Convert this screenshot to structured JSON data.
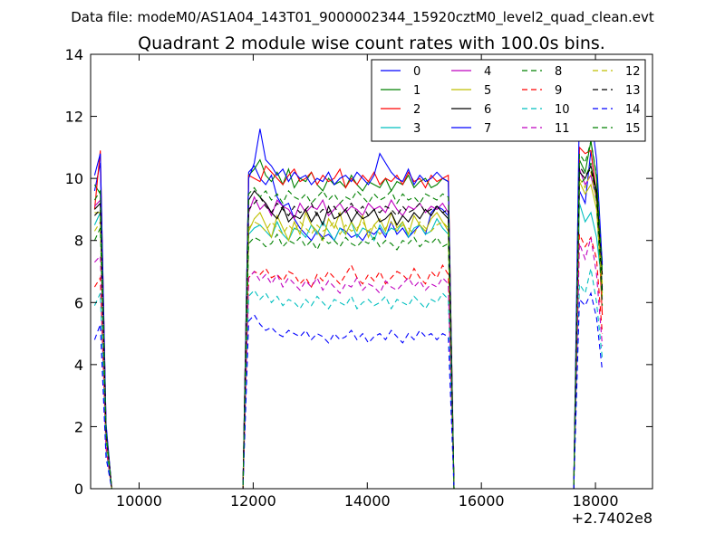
{
  "header": {
    "data_file": "Data file: modeM0/AS1A04_143T01_9000002344_15920cztM0_level2_quad_clean.evt",
    "title": "Quadrant 2 module wise count rates with 100.0s bins."
  },
  "chart_data": {
    "type": "line",
    "title": "Quadrant 2 module wise count rates with 100.0s bins.",
    "xlabel": "",
    "ylabel": "",
    "x_offset_label": "+2.7402e8",
    "xlim": [
      9150,
      19000
    ],
    "ylim": [
      0,
      14
    ],
    "xticks": [
      10000,
      12000,
      14000,
      16000,
      18000
    ],
    "xtick_labels": [
      "10000",
      "12000",
      "14000",
      "16000",
      "18000"
    ],
    "yticks": [
      0,
      2,
      4,
      6,
      8,
      10,
      12,
      14
    ],
    "ytick_labels": [
      "0",
      "2",
      "4",
      "6",
      "8",
      "10",
      "12",
      "14"
    ],
    "grid": false,
    "legend_position": "top-right",
    "segments": [
      {
        "x_start": 9220,
        "n": 3
      },
      {
        "x_start": 9520,
        "n": 24
      },
      {
        "x_start": 11920,
        "n": 37
      },
      {
        "x_start": 15620,
        "n": 21
      },
      {
        "x_start": 17720,
        "n": 5
      }
    ],
    "series": [
      {
        "name": "0",
        "color": "#0000ff",
        "dash": "solid",
        "seg_low": [
          9.6,
          10.5,
          2.0
        ],
        "plateau": [
          10.2,
          10.4,
          10.0,
          9.8,
          10.1,
          9.4,
          9.1,
          9.2,
          8.7,
          8.4,
          8.2,
          8.0,
          8.3,
          8.1,
          8.2,
          8.0,
          8.4,
          8.3,
          8.1,
          8.2,
          8.0,
          8.3,
          8.2,
          8.4,
          8.1,
          8.6,
          8.2,
          8.4,
          8.1,
          8.3,
          8.5,
          8.2,
          8.9,
          9.1,
          9.0,
          8.8,
          0.0
        ],
        "seg_high": [
          9.6,
          9.2,
          10.9,
          9.4,
          7.3
        ]
      },
      {
        "name": "1",
        "color": "#008000",
        "dash": "solid",
        "seg_low": [
          9.8,
          9.5,
          1.9
        ],
        "plateau": [
          10.1,
          10.3,
          10.6,
          10.1,
          9.9,
          10.2,
          9.8,
          10.3,
          9.7,
          10.0,
          9.9,
          10.2,
          9.8,
          9.6,
          10.0,
          9.8,
          9.9,
          9.7,
          10.1,
          9.8,
          9.6,
          9.9,
          9.8,
          9.7,
          10.0,
          9.6,
          9.9,
          9.8,
          10.1,
          9.7,
          9.9,
          10.0,
          9.7,
          9.8,
          10.0,
          9.9,
          0.0
        ],
        "seg_high": [
          10.6,
          10.2,
          11.2,
          10.0,
          6.3
        ]
      },
      {
        "name": "2",
        "color": "#ff0000",
        "dash": "solid",
        "seg_low": [
          9.0,
          10.9,
          2.0
        ],
        "plateau": [
          10.1,
          10.0,
          9.9,
          10.4,
          10.2,
          10.0,
          9.8,
          10.1,
          10.3,
          9.9,
          10.0,
          10.2,
          9.8,
          10.1,
          9.9,
          10.0,
          10.3,
          9.7,
          10.0,
          9.8,
          10.1,
          9.9,
          10.2,
          9.8,
          10.0,
          9.9,
          10.1,
          9.8,
          10.2,
          9.9,
          10.0,
          9.7,
          10.1,
          9.9,
          10.0,
          10.1,
          0.0
        ],
        "seg_high": [
          11.0,
          10.8,
          10.9,
          9.5,
          5.6
        ]
      },
      {
        "name": "3",
        "color": "#00bfbf",
        "dash": "solid",
        "seg_low": [
          8.5,
          8.9,
          1.8
        ],
        "plateau": [
          8.2,
          8.4,
          8.5,
          8.3,
          8.1,
          8.6,
          8.2,
          8.0,
          8.4,
          8.3,
          8.1,
          8.5,
          8.2,
          8.6,
          8.3,
          8.0,
          8.4,
          8.2,
          8.6,
          8.1,
          8.4,
          8.3,
          8.0,
          8.5,
          8.2,
          8.4,
          8.3,
          8.6,
          8.1,
          8.4,
          8.5,
          8.2,
          8.3,
          8.7,
          8.4,
          8.2,
          0.0
        ],
        "seg_high": [
          9.2,
          8.6,
          8.9,
          8.1,
          6.5
        ]
      },
      {
        "name": "4",
        "color": "#bf00bf",
        "dash": "solid",
        "seg_low": [
          9.1,
          9.3,
          1.9
        ],
        "plateau": [
          8.9,
          9.4,
          9.0,
          9.2,
          8.8,
          9.3,
          9.1,
          9.0,
          8.7,
          9.2,
          8.9,
          9.1,
          9.0,
          9.3,
          8.8,
          9.0,
          9.2,
          8.9,
          9.1,
          9.0,
          8.8,
          9.2,
          9.0,
          9.1,
          8.9,
          9.3,
          9.0,
          8.8,
          9.1,
          9.0,
          9.2,
          8.9,
          9.1,
          9.0,
          9.2,
          8.9,
          0.0
        ],
        "seg_high": [
          10.3,
          9.8,
          10.1,
          9.3,
          6.1
        ]
      },
      {
        "name": "5",
        "color": "#bfbf00",
        "dash": "solid",
        "seg_low": [
          8.9,
          8.9,
          1.8
        ],
        "plateau": [
          8.3,
          8.7,
          8.9,
          8.5,
          8.1,
          8.8,
          8.4,
          8.0,
          8.6,
          8.2,
          8.9,
          8.5,
          8.3,
          8.0,
          8.7,
          8.4,
          8.9,
          8.2,
          8.6,
          8.3,
          8.8,
          8.1,
          8.5,
          8.7,
          8.3,
          8.9,
          8.4,
          8.6,
          8.2,
          8.8,
          8.5,
          8.3,
          8.7,
          8.9,
          8.6,
          8.3,
          0.0
        ],
        "seg_high": [
          9.9,
          9.5,
          9.8,
          9.0,
          6.2
        ]
      },
      {
        "name": "6",
        "color": "#000000",
        "dash": "solid",
        "seg_low": [
          9.0,
          9.2,
          1.9
        ],
        "plateau": [
          9.3,
          9.6,
          9.4,
          9.2,
          8.9,
          8.7,
          9.1,
          8.6,
          8.8,
          8.7,
          9.0,
          8.6,
          8.9,
          8.5,
          9.1,
          8.7,
          8.8,
          9.0,
          8.6,
          8.9,
          8.7,
          8.8,
          9.0,
          8.6,
          8.7,
          8.9,
          8.5,
          8.8,
          8.6,
          8.9,
          8.7,
          9.0,
          8.8,
          9.1,
          8.9,
          8.7,
          0.0
        ],
        "seg_high": [
          10.2,
          10.0,
          10.4,
          9.6,
          6.4
        ]
      },
      {
        "name": "7",
        "color": "#0000ff",
        "dash": "solid",
        "seg_low": [
          10.1,
          10.8,
          2.1
        ],
        "plateau": [
          10.0,
          10.5,
          11.6,
          10.6,
          10.4,
          10.1,
          10.3,
          9.9,
          10.2,
          10.0,
          10.1,
          9.8,
          10.0,
          9.9,
          10.2,
          9.8,
          10.0,
          10.1,
          9.9,
          10.2,
          10.0,
          9.8,
          10.1,
          10.8,
          10.5,
          10.2,
          10.0,
          9.9,
          10.3,
          9.8,
          10.1,
          9.9,
          10.0,
          10.2,
          10.0,
          9.9,
          0.0
        ],
        "seg_high": [
          12.4,
          11.5,
          12.1,
          10.6,
          7.2
        ]
      },
      {
        "name": "8",
        "color": "#008000",
        "dash": "dashed",
        "seg_low": [
          8.0,
          8.4,
          1.6
        ],
        "plateau": [
          7.9,
          8.1,
          8.0,
          7.8,
          7.9,
          8.2,
          7.8,
          8.0,
          7.9,
          8.1,
          7.8,
          8.0,
          7.7,
          8.1,
          7.9,
          8.0,
          7.8,
          8.1,
          7.9,
          7.8,
          8.0,
          7.9,
          8.1,
          7.8,
          8.0,
          7.9,
          7.7,
          8.0,
          7.9,
          8.1,
          7.8,
          8.0,
          7.9,
          8.1,
          7.8,
          7.9,
          0.0
        ],
        "seg_high": [
          9.8,
          10.0,
          10.5,
          9.2,
          5.9
        ]
      },
      {
        "name": "9",
        "color": "#ff0000",
        "dash": "dashed",
        "seg_low": [
          6.5,
          6.8,
          1.3
        ],
        "plateau": [
          6.8,
          7.0,
          6.9,
          7.1,
          6.8,
          6.9,
          6.7,
          7.0,
          6.9,
          6.6,
          6.8,
          6.5,
          6.9,
          6.7,
          7.0,
          6.8,
          6.6,
          6.9,
          7.2,
          6.8,
          6.6,
          6.9,
          6.7,
          7.0,
          6.6,
          6.8,
          7.0,
          6.9,
          6.7,
          7.1,
          6.8,
          6.6,
          7.0,
          6.8,
          7.2,
          6.9,
          0.0
        ],
        "seg_high": [
          8.2,
          7.8,
          8.1,
          7.4,
          5.0
        ]
      },
      {
        "name": "10",
        "color": "#00bfbf",
        "dash": "dashed",
        "seg_low": [
          5.9,
          6.3,
          1.2
        ],
        "plateau": [
          6.2,
          6.4,
          6.1,
          6.3,
          6.0,
          6.2,
          5.9,
          6.1,
          6.0,
          5.8,
          6.1,
          5.9,
          6.2,
          6.0,
          5.8,
          6.1,
          6.0,
          5.9,
          6.2,
          5.8,
          6.0,
          6.1,
          5.9,
          6.0,
          6.2,
          5.8,
          6.1,
          6.0,
          5.9,
          6.2,
          6.0,
          5.8,
          6.1,
          6.0,
          6.3,
          6.1,
          0.0
        ],
        "seg_high": [
          6.6,
          6.3,
          7.1,
          6.0,
          4.2
        ]
      },
      {
        "name": "11",
        "color": "#bf00bf",
        "dash": "dashed",
        "seg_low": [
          7.3,
          7.5,
          1.4
        ],
        "plateau": [
          6.8,
          7.0,
          6.7,
          6.9,
          6.6,
          6.9,
          6.5,
          6.8,
          6.6,
          6.4,
          6.7,
          6.5,
          6.8,
          6.4,
          6.7,
          6.5,
          6.3,
          6.6,
          6.5,
          6.8,
          6.4,
          6.6,
          6.5,
          6.3,
          6.7,
          6.5,
          6.4,
          6.6,
          6.8,
          6.5,
          6.7,
          6.4,
          6.6,
          6.5,
          6.8,
          6.6,
          0.0
        ],
        "seg_high": [
          7.9,
          7.4,
          8.1,
          6.9,
          4.6
        ]
      },
      {
        "name": "12",
        "color": "#bfbf00",
        "dash": "dashed",
        "seg_low": [
          8.3,
          8.6,
          1.7
        ],
        "plateau": [
          8.4,
          8.6,
          8.5,
          8.3,
          8.6,
          8.4,
          8.2,
          8.5,
          8.3,
          8.6,
          8.4,
          8.2,
          8.5,
          8.3,
          8.4,
          8.6,
          8.2,
          8.5,
          8.3,
          8.4,
          8.6,
          8.3,
          8.5,
          8.2,
          8.4,
          8.6,
          8.3,
          8.5,
          8.4,
          8.2,
          8.6,
          8.4,
          8.3,
          8.5,
          8.6,
          8.4,
          0.0
        ],
        "seg_high": [
          10.0,
          9.7,
          10.2,
          9.3,
          6.6
        ]
      },
      {
        "name": "13",
        "color": "#000000",
        "dash": "dashed",
        "seg_low": [
          8.8,
          9.0,
          1.8
        ],
        "plateau": [
          9.0,
          9.2,
          9.4,
          9.1,
          8.9,
          9.2,
          9.0,
          8.8,
          9.1,
          8.9,
          9.0,
          9.2,
          8.8,
          9.0,
          8.9,
          9.1,
          8.8,
          9.0,
          9.2,
          8.9,
          9.1,
          8.8,
          9.0,
          8.9,
          9.1,
          9.0,
          8.8,
          9.1,
          8.9,
          9.0,
          9.2,
          8.9,
          9.0,
          9.1,
          8.9,
          9.0,
          0.0
        ],
        "seg_high": [
          10.4,
          10.1,
          10.3,
          9.5,
          6.9
        ]
      },
      {
        "name": "14",
        "color": "#0000ff",
        "dash": "dashed",
        "seg_low": [
          4.8,
          5.3,
          1.0
        ],
        "plateau": [
          5.4,
          5.6,
          5.3,
          5.1,
          5.2,
          5.0,
          4.9,
          5.1,
          5.0,
          4.9,
          5.1,
          4.8,
          5.0,
          4.9,
          4.7,
          5.0,
          4.8,
          4.9,
          5.1,
          4.8,
          5.0,
          4.7,
          4.9,
          5.0,
          4.8,
          5.1,
          4.9,
          4.7,
          5.0,
          4.8,
          5.1,
          4.9,
          5.0,
          4.8,
          5.0,
          4.9,
          0.0
        ],
        "seg_high": [
          6.1,
          5.9,
          6.3,
          5.5,
          3.8
        ]
      },
      {
        "name": "15",
        "color": "#008000",
        "dash": "dashed",
        "seg_low": [
          9.3,
          9.6,
          1.9
        ],
        "plateau": [
          9.5,
          9.7,
          9.4,
          9.6,
          9.3,
          9.5,
          9.2,
          9.6,
          9.4,
          9.3,
          9.5,
          9.2,
          9.4,
          9.6,
          9.3,
          9.5,
          9.2,
          9.4,
          9.3,
          9.6,
          9.4,
          9.2,
          9.5,
          9.3,
          9.4,
          9.6,
          9.2,
          9.5,
          9.3,
          9.4,
          9.2,
          9.5,
          9.4,
          9.3,
          9.5,
          9.4,
          0.0
        ],
        "seg_high": [
          10.8,
          10.5,
          11.2,
          10.1,
          7.0
        ]
      }
    ]
  }
}
